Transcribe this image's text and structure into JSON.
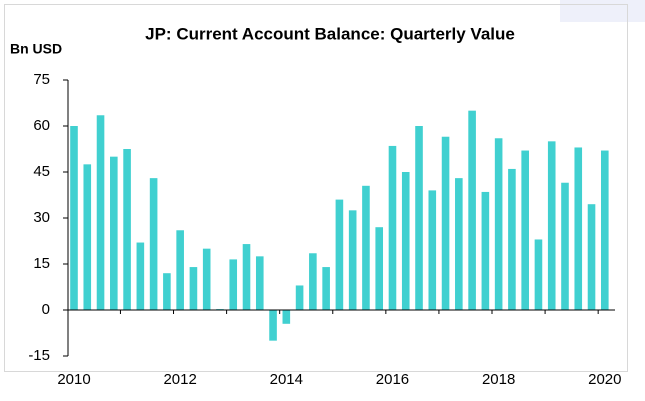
{
  "chart_data": {
    "type": "bar",
    "title": "JP: Current Account Balance: Quarterly Value",
    "y_label": "Bn USD",
    "categories": [
      "2010",
      null,
      null,
      null,
      null,
      null,
      null,
      null,
      "2012",
      null,
      null,
      null,
      null,
      null,
      null,
      null,
      "2014",
      null,
      null,
      null,
      null,
      null,
      null,
      null,
      "2016",
      null,
      null,
      null,
      null,
      null,
      null,
      null,
      "2018",
      null,
      null,
      null,
      null,
      null,
      null,
      null,
      "2020"
    ],
    "values": [
      60,
      47.5,
      63.5,
      50,
      52.5,
      22,
      43,
      12,
      26,
      14,
      20,
      0.3,
      16.5,
      21.5,
      17.5,
      -10,
      -4.5,
      8,
      18.5,
      14,
      36,
      32.5,
      40.5,
      27,
      53.5,
      45,
      60,
      39,
      56.5,
      43,
      65,
      38.5,
      56,
      46,
      52,
      23,
      55,
      41.5,
      53,
      34.5,
      52
    ],
    "color": "#40d0d0",
    "ylim": [
      -15,
      75
    ],
    "yticks": [
      -15,
      0,
      15,
      30,
      45,
      60,
      75
    ]
  }
}
